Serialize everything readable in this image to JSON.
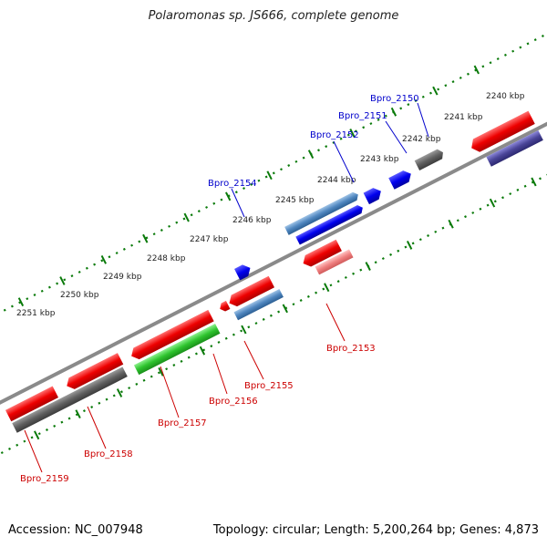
{
  "title": "Polaromonas sp. JS666, complete genome",
  "footer": {
    "accession": "Accession: NC_007948",
    "summary": "Topology: circular; Length: 5,200,264 bp; Genes: 4,873"
  },
  "scale_labels": [
    "2240 kbp",
    "2241 kbp",
    "2242 kbp",
    "2243 kbp",
    "2244 kbp",
    "2245 kbp",
    "2246 kbp",
    "2247 kbp",
    "2248 kbp",
    "2249 kbp",
    "2250 kbp",
    "2251 kbp"
  ],
  "gene_labels": {
    "top": [
      "Bpro_2150",
      "Bpro_2151",
      "Bpro_2152",
      "Bpro_2154"
    ],
    "bottom": [
      "Bpro_2153",
      "Bpro_2155",
      "Bpro_2156",
      "Bpro_2157",
      "Bpro_2158",
      "Bpro_2159"
    ]
  },
  "colors": {
    "forward_label": "#0000cc",
    "reverse_label": "#cc0000",
    "backbone": "#888888",
    "scale_dots": "#0a7a0a"
  }
}
